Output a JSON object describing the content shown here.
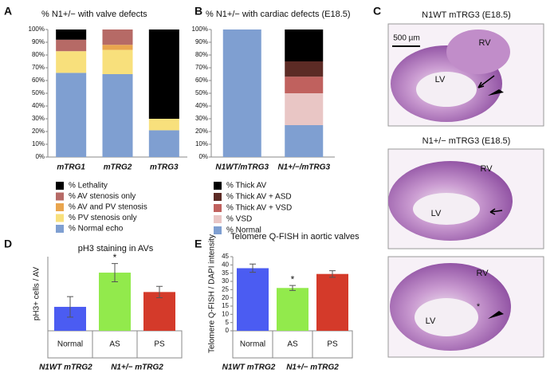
{
  "panel_labels": [
    "A",
    "B",
    "C",
    "D",
    "E"
  ],
  "chart_data": [
    {
      "type": "stacked-bar",
      "title": "% N1+/− with valve defects",
      "categories": [
        "mTRG1",
        "mTRG2",
        "mTRG3"
      ],
      "series": [
        {
          "name": "% Normal echo",
          "color": "#7f9fd1",
          "values": [
            66,
            65,
            21
          ]
        },
        {
          "name": "% PV stenosis only",
          "color": "#f8e07c",
          "values": [
            17,
            19,
            9
          ]
        },
        {
          "name": "% AV and PV stenosis",
          "color": "#e9a54e",
          "values": [
            0,
            4,
            0
          ]
        },
        {
          "name": "% AV stenosis only",
          "color": "#b66a66",
          "values": [
            9,
            12,
            0
          ]
        },
        {
          "name": "% Lethality",
          "color": "#000000",
          "values": [
            8,
            0,
            70
          ]
        }
      ],
      "ylim": [
        0,
        100
      ],
      "yticks": [
        {
          "value": 0,
          "label": "0%"
        },
        {
          "value": 10,
          "label": "10%"
        },
        {
          "value": 20,
          "label": "20%"
        },
        {
          "value": 30,
          "label": "30%"
        },
        {
          "value": 40,
          "label": "40%"
        },
        {
          "value": 50,
          "label": "50%"
        },
        {
          "value": 60,
          "label": "60%"
        },
        {
          "value": 70,
          "label": "70%"
        },
        {
          "value": 80,
          "label": "80%"
        },
        {
          "value": 90,
          "label": "90%"
        },
        {
          "value": 100,
          "label": "100%"
        }
      ]
    },
    {
      "type": "stacked-bar",
      "title": "% N1+/− with cardiac defects (E18.5)",
      "categories": [
        "N1WT/mTRG3",
        "N1+/−/mTRG3"
      ],
      "series": [
        {
          "name": "% Normal",
          "color": "#7f9fd1",
          "values": [
            100,
            25
          ]
        },
        {
          "name": "% VSD",
          "color": "#e9c6c5",
          "values": [
            0,
            25
          ]
        },
        {
          "name": "% Thick AV + VSD",
          "color": "#c0615e",
          "values": [
            0,
            13
          ]
        },
        {
          "name": "% Thick AV + ASD",
          "color": "#5c2b25",
          "values": [
            0,
            12
          ]
        },
        {
          "name": "% Thick AV",
          "color": "#000000",
          "values": [
            0,
            25
          ]
        }
      ],
      "ylim": [
        0,
        100
      ],
      "yticks": [
        {
          "value": 0,
          "label": "0%"
        },
        {
          "value": 10,
          "label": "10%"
        },
        {
          "value": 20,
          "label": "20%"
        },
        {
          "value": 30,
          "label": "30%"
        },
        {
          "value": 40,
          "label": "40%"
        },
        {
          "value": 50,
          "label": "50%"
        },
        {
          "value": 60,
          "label": "60%"
        },
        {
          "value": 70,
          "label": "70%"
        },
        {
          "value": 80,
          "label": "80%"
        },
        {
          "value": 90,
          "label": "90%"
        },
        {
          "value": 100,
          "label": "100%"
        }
      ]
    },
    {
      "type": "bar",
      "title": "pH3 staining in AVs",
      "y_label": "pH3+ cells / AV",
      "categories": [
        "Normal",
        "AS",
        "PS"
      ],
      "values": [
        2.1,
        5.1,
        3.4
      ],
      "errors": [
        0.9,
        0.8,
        0.5
      ],
      "colors": [
        "#4b5cf2",
        "#92ea4c",
        "#d43a2a"
      ],
      "significance_labels": [
        null,
        "*",
        null
      ],
      "group_labels": [
        "N1WT mTRG2",
        "N1+/− mTRG2"
      ],
      "ylim": [
        0,
        6.5
      ]
    },
    {
      "type": "bar",
      "title": "Telomere Q-FISH in aortic valves",
      "y_label": "Telomere Q-FISH / DAPI intensity",
      "categories": [
        "Normal",
        "AS",
        "PS"
      ],
      "values": [
        38,
        26,
        34.5
      ],
      "errors": [
        2.5,
        1.5,
        2
      ],
      "colors": [
        "#4b5cf2",
        "#92ea4c",
        "#d43a2a"
      ],
      "significance_labels": [
        null,
        "*",
        null
      ],
      "group_labels": [
        "N1WT mTRG2",
        "N1+/− mTRG2"
      ],
      "ylim": [
        0,
        45
      ],
      "yticks": [
        0,
        5,
        10,
        15,
        20,
        25,
        30,
        35,
        40,
        45
      ]
    }
  ],
  "histology": {
    "titles": [
      "N1WT mTRG3 (E18.5)",
      "N1+/− mTRG3 (E18.5)"
    ],
    "scale_bar": "500 µm",
    "labels": [
      [
        "RV",
        "LV"
      ],
      [
        "RV",
        "LV"
      ],
      [
        "RV",
        "LV",
        "*"
      ]
    ]
  }
}
